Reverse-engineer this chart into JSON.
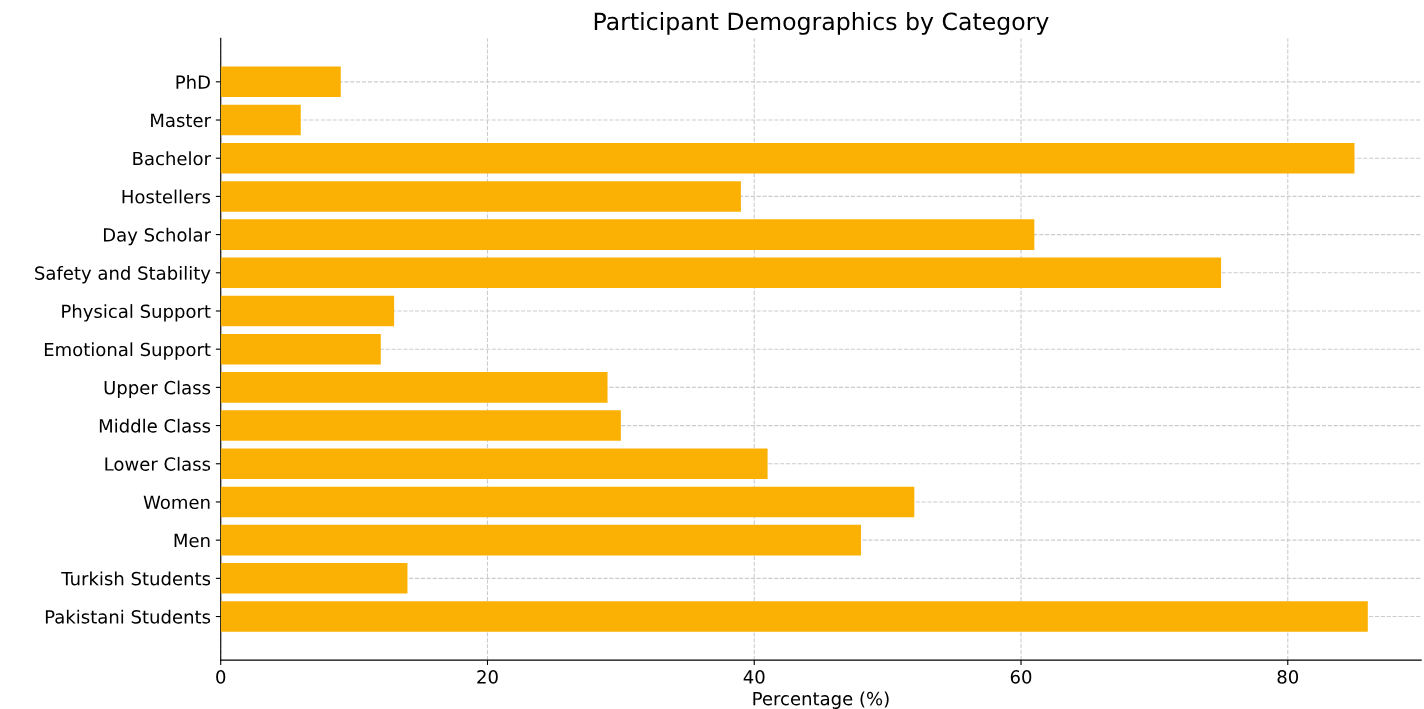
{
  "chart_data": {
    "type": "bar",
    "orientation": "horizontal",
    "title": "Participant Demographics by Category",
    "xlabel": "Percentage (%)",
    "categories": [
      "PhD",
      "Master",
      "Bachelor",
      "Hostellers",
      "Day Scholar",
      "Safety and Stability",
      "Physical Support",
      "Emotional Support",
      "Upper Class",
      "Middle Class",
      "Lower Class",
      "Women",
      "Men",
      "Turkish Students",
      "Pakistani Students"
    ],
    "values": [
      9,
      6,
      85,
      39,
      61,
      75,
      13,
      12,
      29,
      30,
      41,
      52,
      48,
      14,
      86
    ],
    "color": "#fbb104",
    "xlim": [
      0,
      90
    ],
    "xticks": [
      0,
      20,
      40,
      60,
      80
    ],
    "grid": true
  }
}
